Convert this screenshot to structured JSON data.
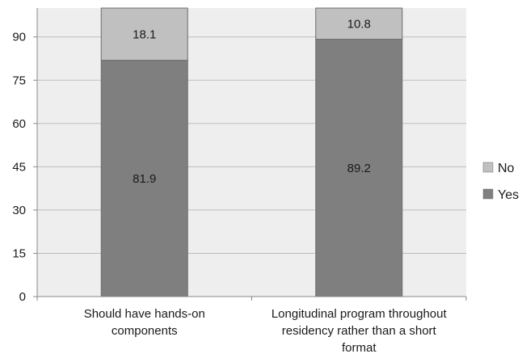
{
  "chart_data": {
    "type": "bar",
    "stacked": true,
    "categories": [
      [
        "Should have hands-on",
        "components"
      ],
      [
        "Longitudinal program throughout",
        "residency rather than a short",
        "format"
      ]
    ],
    "series": [
      {
        "name": "Yes",
        "values": [
          81.9,
          89.2
        ],
        "color": "#7f7f7f"
      },
      {
        "name": "No",
        "values": [
          18.1,
          10.8
        ],
        "color": "#c0c0c0"
      }
    ],
    "data_labels": [
      [
        "81.9",
        "89.2"
      ],
      [
        "18.1",
        "10.8"
      ]
    ],
    "ylim": [
      0,
      100
    ],
    "yticks": [
      0,
      15,
      30,
      45,
      60,
      75,
      90
    ],
    "yticks_text": [
      "0",
      "15",
      "30",
      "45",
      "60",
      "75",
      "90"
    ],
    "grid": true,
    "legend_position": "right",
    "legend_order": [
      "No",
      "Yes"
    ],
    "legend_text": [
      "No",
      "Yes"
    ],
    "plot_background": "#eeeeee"
  }
}
